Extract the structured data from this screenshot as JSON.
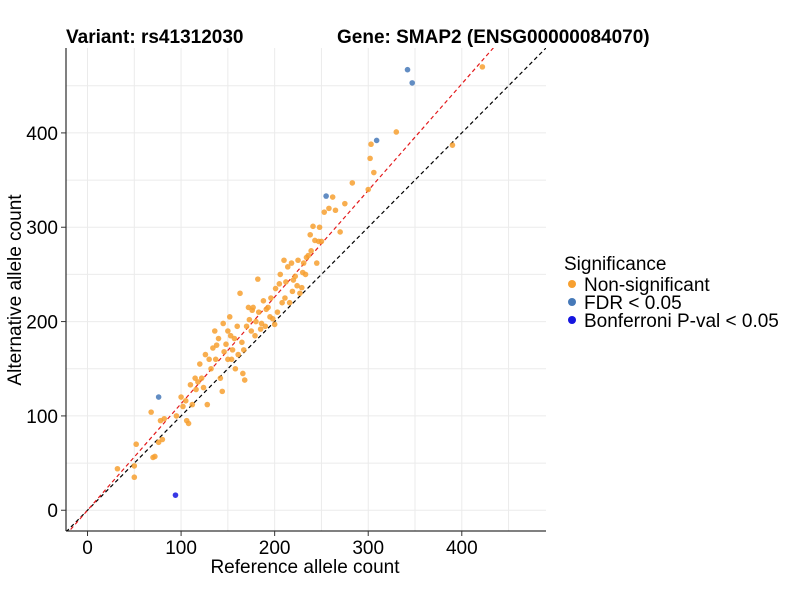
{
  "chart_data": {
    "type": "scatter",
    "title_left": "Variant: rs41312030",
    "title_right": "Gene: SMAP2 (ENSG00000084070)",
    "xlabel": "Reference allele count",
    "ylabel": "Alternative allele count",
    "xlim": [
      -23,
      490
    ],
    "ylim": [
      -22,
      490
    ],
    "x_ticks": [
      0,
      100,
      200,
      300,
      400
    ],
    "y_ticks": [
      0,
      100,
      200,
      300,
      400
    ],
    "grid": true,
    "reference_lines": [
      {
        "slope": 1.0,
        "intercept": 0,
        "color": "#000000",
        "dash": "dashed"
      },
      {
        "slope": 1.13,
        "intercept": 0,
        "color": "#e31a1c",
        "dash": "dashed"
      }
    ],
    "legend": {
      "title": "Significance",
      "placement": "right"
    },
    "series": [
      {
        "name": "Non-significant",
        "color": "#f7a030",
        "points": [
          [
            32,
            44
          ],
          [
            50,
            35
          ],
          [
            50,
            47
          ],
          [
            52,
            70
          ],
          [
            68,
            104
          ],
          [
            70,
            56
          ],
          [
            72,
            57
          ],
          [
            76,
            72
          ],
          [
            78,
            95
          ],
          [
            80,
            75
          ],
          [
            82,
            97
          ],
          [
            95,
            100
          ],
          [
            100,
            120
          ],
          [
            102,
            110
          ],
          [
            105,
            116
          ],
          [
            106,
            95
          ],
          [
            108,
            92
          ],
          [
            110,
            133
          ],
          [
            112,
            112
          ],
          [
            115,
            140
          ],
          [
            116,
            128
          ],
          [
            118,
            136
          ],
          [
            120,
            155
          ],
          [
            122,
            140
          ],
          [
            124,
            130
          ],
          [
            126,
            165
          ],
          [
            128,
            112
          ],
          [
            130,
            160
          ],
          [
            132,
            150
          ],
          [
            134,
            172
          ],
          [
            136,
            190
          ],
          [
            137,
            160
          ],
          [
            138,
            175
          ],
          [
            140,
            182
          ],
          [
            142,
            140
          ],
          [
            144,
            126
          ],
          [
            145,
            198
          ],
          [
            146,
            168
          ],
          [
            148,
            176
          ],
          [
            150,
            190
          ],
          [
            150,
            160
          ],
          [
            152,
            205
          ],
          [
            153,
            185
          ],
          [
            154,
            160
          ],
          [
            155,
            170
          ],
          [
            157,
            182
          ],
          [
            158,
            150
          ],
          [
            160,
            195
          ],
          [
            161,
            165
          ],
          [
            163,
            230
          ],
          [
            165,
            178
          ],
          [
            166,
            145
          ],
          [
            167,
            170
          ],
          [
            168,
            138
          ],
          [
            170,
            195
          ],
          [
            172,
            215
          ],
          [
            173,
            202
          ],
          [
            175,
            190
          ],
          [
            176,
            212
          ],
          [
            177,
            215
          ],
          [
            179,
            185
          ],
          [
            180,
            200
          ],
          [
            182,
            245
          ],
          [
            183,
            210
          ],
          [
            185,
            192
          ],
          [
            186,
            198
          ],
          [
            188,
            222
          ],
          [
            190,
            195
          ],
          [
            191,
            213
          ],
          [
            193,
            215
          ],
          [
            195,
            205
          ],
          [
            196,
            225
          ],
          [
            198,
            203
          ],
          [
            200,
            197
          ],
          [
            201,
            235
          ],
          [
            203,
            210
          ],
          [
            205,
            240
          ],
          [
            206,
            250
          ],
          [
            208,
            220
          ],
          [
            210,
            265
          ],
          [
            211,
            225
          ],
          [
            212,
            242
          ],
          [
            214,
            258
          ],
          [
            216,
            220
          ],
          [
            218,
            262
          ],
          [
            219,
            232
          ],
          [
            220,
            244
          ],
          [
            222,
            248
          ],
          [
            224,
            238
          ],
          [
            225,
            265
          ],
          [
            227,
            230
          ],
          [
            229,
            236
          ],
          [
            230,
            252
          ],
          [
            231,
            262
          ],
          [
            233,
            250
          ],
          [
            234,
            268
          ],
          [
            236,
            270
          ],
          [
            238,
            292
          ],
          [
            239,
            275
          ],
          [
            241,
            301
          ],
          [
            243,
            286
          ],
          [
            245,
            262
          ],
          [
            247,
            285
          ],
          [
            248,
            300
          ],
          [
            250,
            285
          ],
          [
            253,
            316
          ],
          [
            258,
            320
          ],
          [
            262,
            332
          ],
          [
            265,
            318
          ],
          [
            270,
            295
          ],
          [
            275,
            325
          ],
          [
            283,
            347
          ],
          [
            300,
            340
          ],
          [
            302,
            373
          ],
          [
            303,
            388
          ],
          [
            306,
            358
          ],
          [
            330,
            401
          ],
          [
            390,
            387
          ],
          [
            422,
            470
          ]
        ]
      },
      {
        "name": "FDR < 0.05",
        "color": "#4679b8",
        "points": [
          [
            76,
            120
          ],
          [
            255,
            333
          ],
          [
            309,
            392
          ],
          [
            342,
            467
          ],
          [
            347,
            453
          ]
        ]
      },
      {
        "name": "Bonferroni P-val < 0.05",
        "color": "#1515e0",
        "points": [
          [
            94,
            16
          ]
        ]
      }
    ]
  }
}
